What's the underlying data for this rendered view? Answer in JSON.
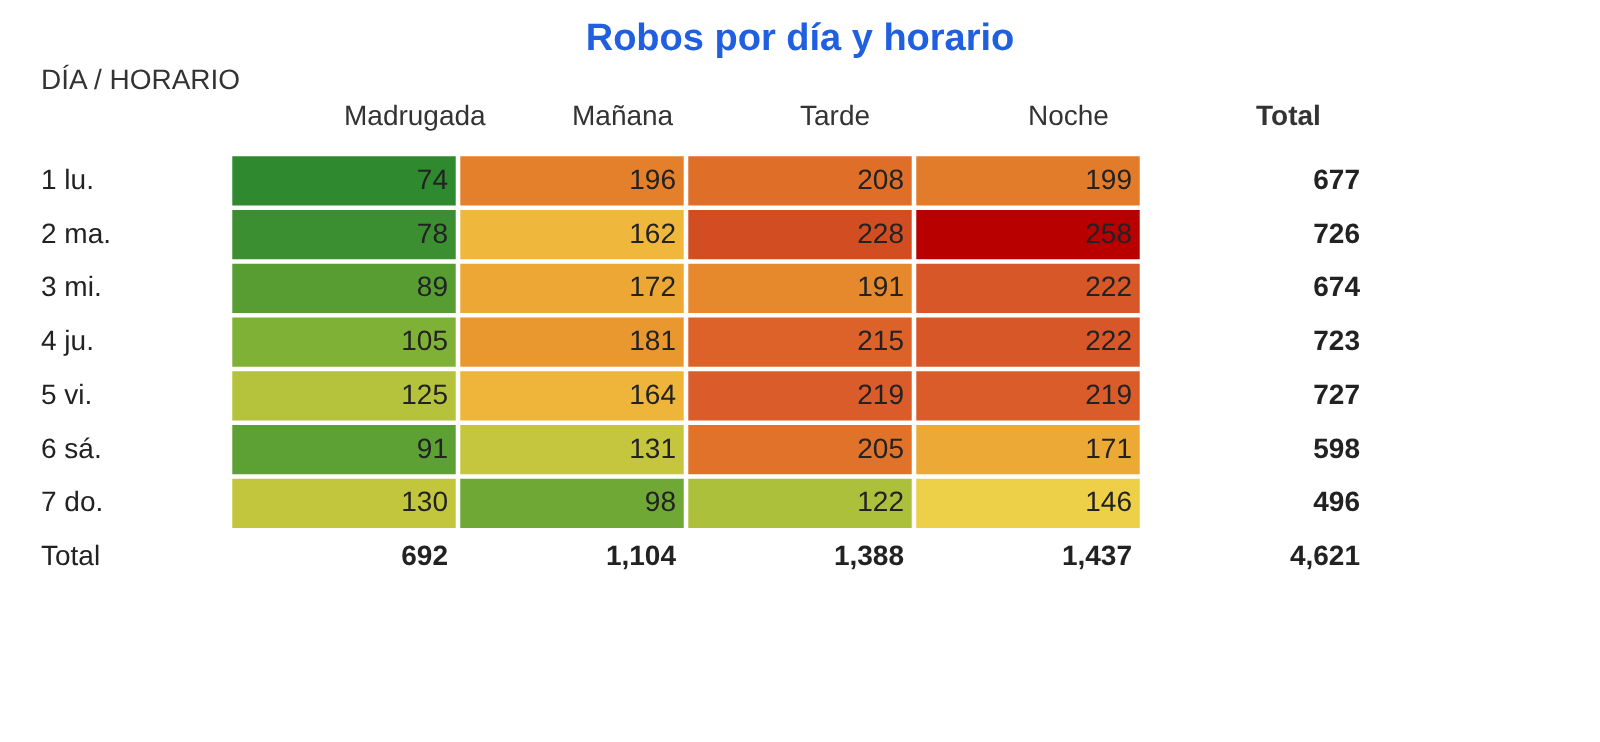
{
  "chart_data": {
    "type": "heatmap",
    "title": "Robos por día y horario",
    "ylabel": "DÍA / HORARIO",
    "y2label": "Total",
    "data_labels": true,
    "categories": [
      "Madrugada",
      "Mañana",
      "Tarde",
      "Noche"
    ],
    "y_categories": [
      "1 lu.",
      "2 ma.",
      "3 mi.",
      "4 ju.",
      "5 vi.",
      "6 sá.",
      "7 do.",
      "Total"
    ],
    "y2_categories": [
      "677",
      "726",
      "674",
      "723",
      "727",
      "598",
      "496",
      "4,621"
    ],
    "cells": [
      [
        74,
        196,
        208,
        199
      ],
      [
        78,
        162,
        228,
        258
      ],
      [
        89,
        172,
        191,
        222
      ],
      [
        105,
        181,
        215,
        222
      ],
      [
        125,
        164,
        219,
        219
      ],
      [
        91,
        131,
        205,
        171
      ],
      [
        130,
        98,
        122,
        146
      ],
      [
        null,
        null,
        null,
        null
      ]
    ],
    "cell_labels": [
      [
        "74",
        "196",
        "208",
        "199"
      ],
      [
        "78",
        "162",
        "228",
        "258"
      ],
      [
        "89",
        "172",
        "191",
        "222"
      ],
      [
        "105",
        "181",
        "215",
        "222"
      ],
      [
        "125",
        "164",
        "219",
        "219"
      ],
      [
        "91",
        "131",
        "205",
        "171"
      ],
      [
        "130",
        "98",
        "122",
        "146"
      ],
      [
        "692",
        "1,104",
        "1,388",
        "1,437"
      ]
    ],
    "colors": [
      "#2f8a2f",
      "#8fb83a",
      "#f2d04a",
      "#e8922e",
      "#d9582a",
      "#b80000"
    ]
  }
}
